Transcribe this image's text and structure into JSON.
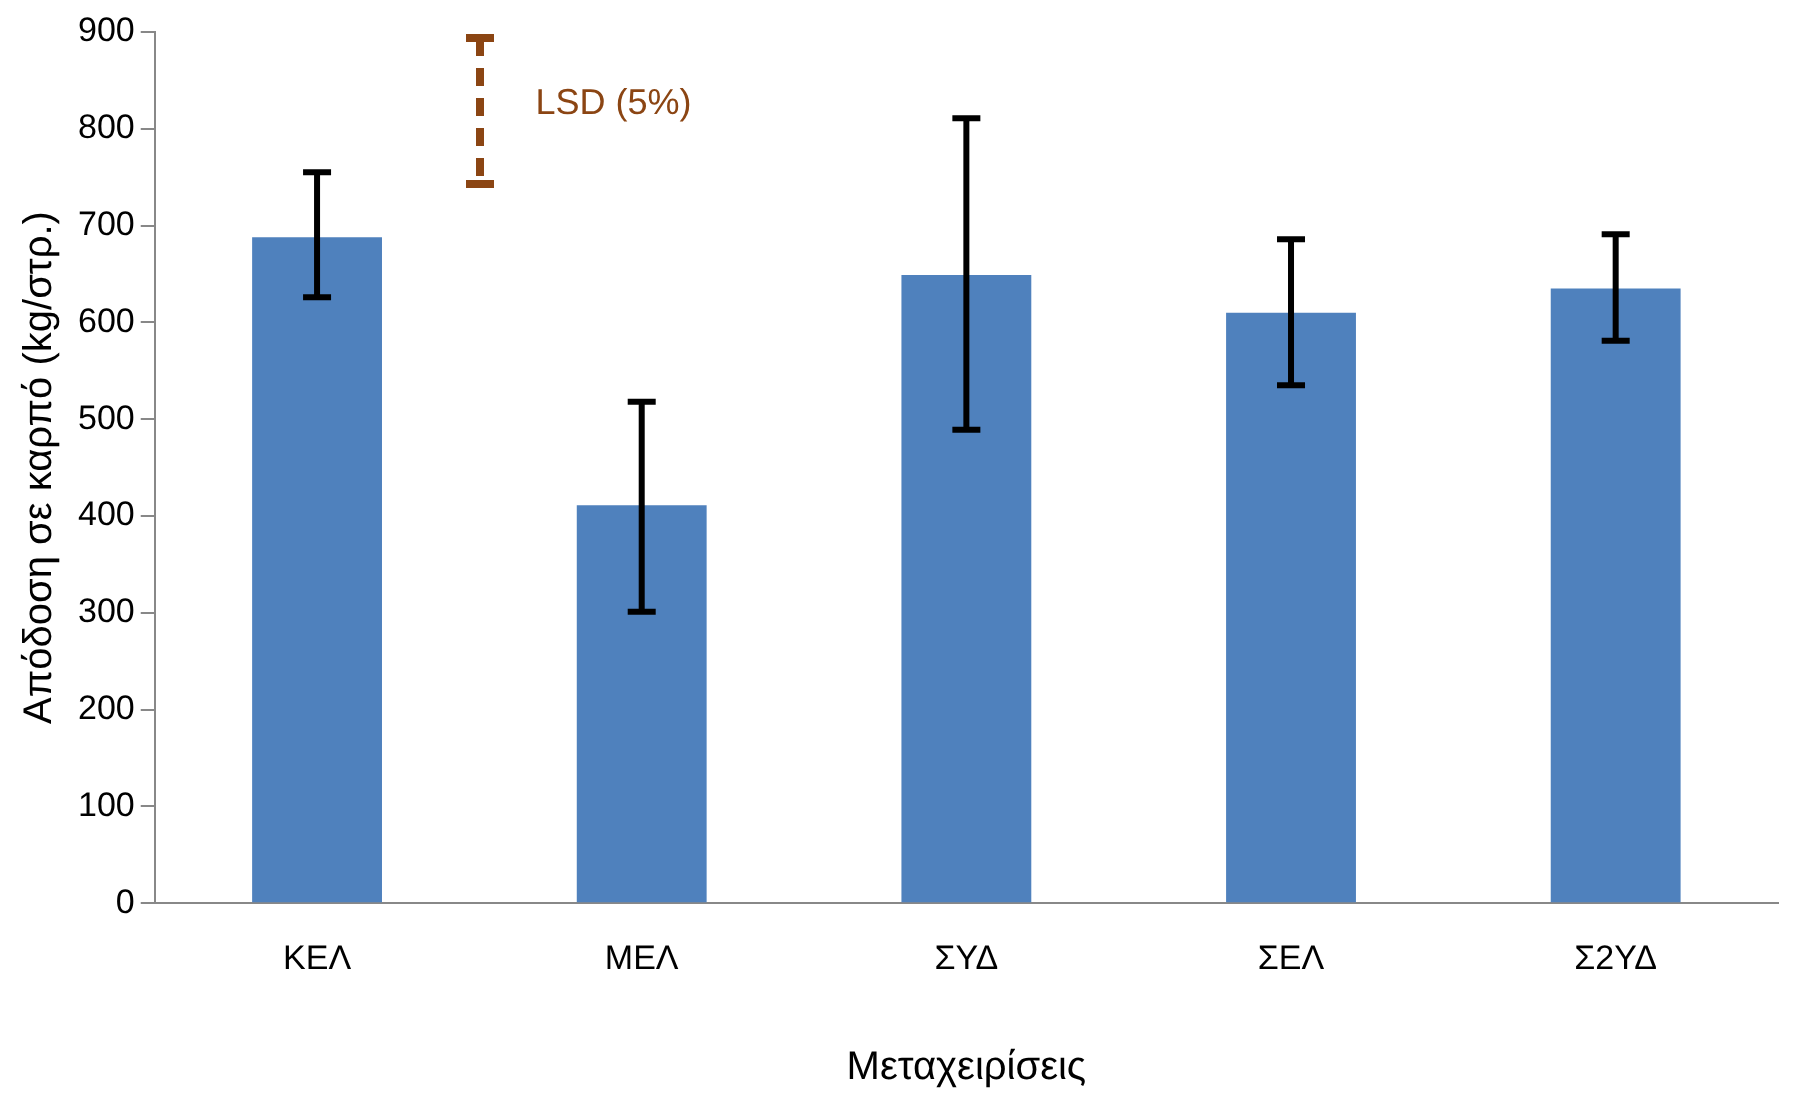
{
  "chart_data": {
    "type": "bar",
    "xlabel": "Μεταχειρίσεις",
    "ylabel": "Απόδοση σε καρπό (kg/στρ.)",
    "categories": [
      "ΚΕΛ",
      "ΜΕΛ",
      "ΣΥΔ",
      "ΣΕΛ",
      "Σ2ΥΔ"
    ],
    "series": [
      {
        "color": "#4f81bd",
        "values": [
          688,
          411,
          649,
          610,
          635
        ],
        "errors": [
          [
            626,
            755
          ],
          [
            301,
            518
          ],
          [
            489,
            811
          ],
          [
            535,
            686
          ],
          [
            581,
            691
          ]
        ]
      }
    ],
    "ylim": [
      0,
      900
    ],
    "yticks": [
      0,
      100,
      200,
      300,
      400,
      500,
      600,
      700,
      800,
      900
    ],
    "grid": false,
    "legend": false,
    "annotations": [
      "LSD (5%)"
    ]
  }
}
